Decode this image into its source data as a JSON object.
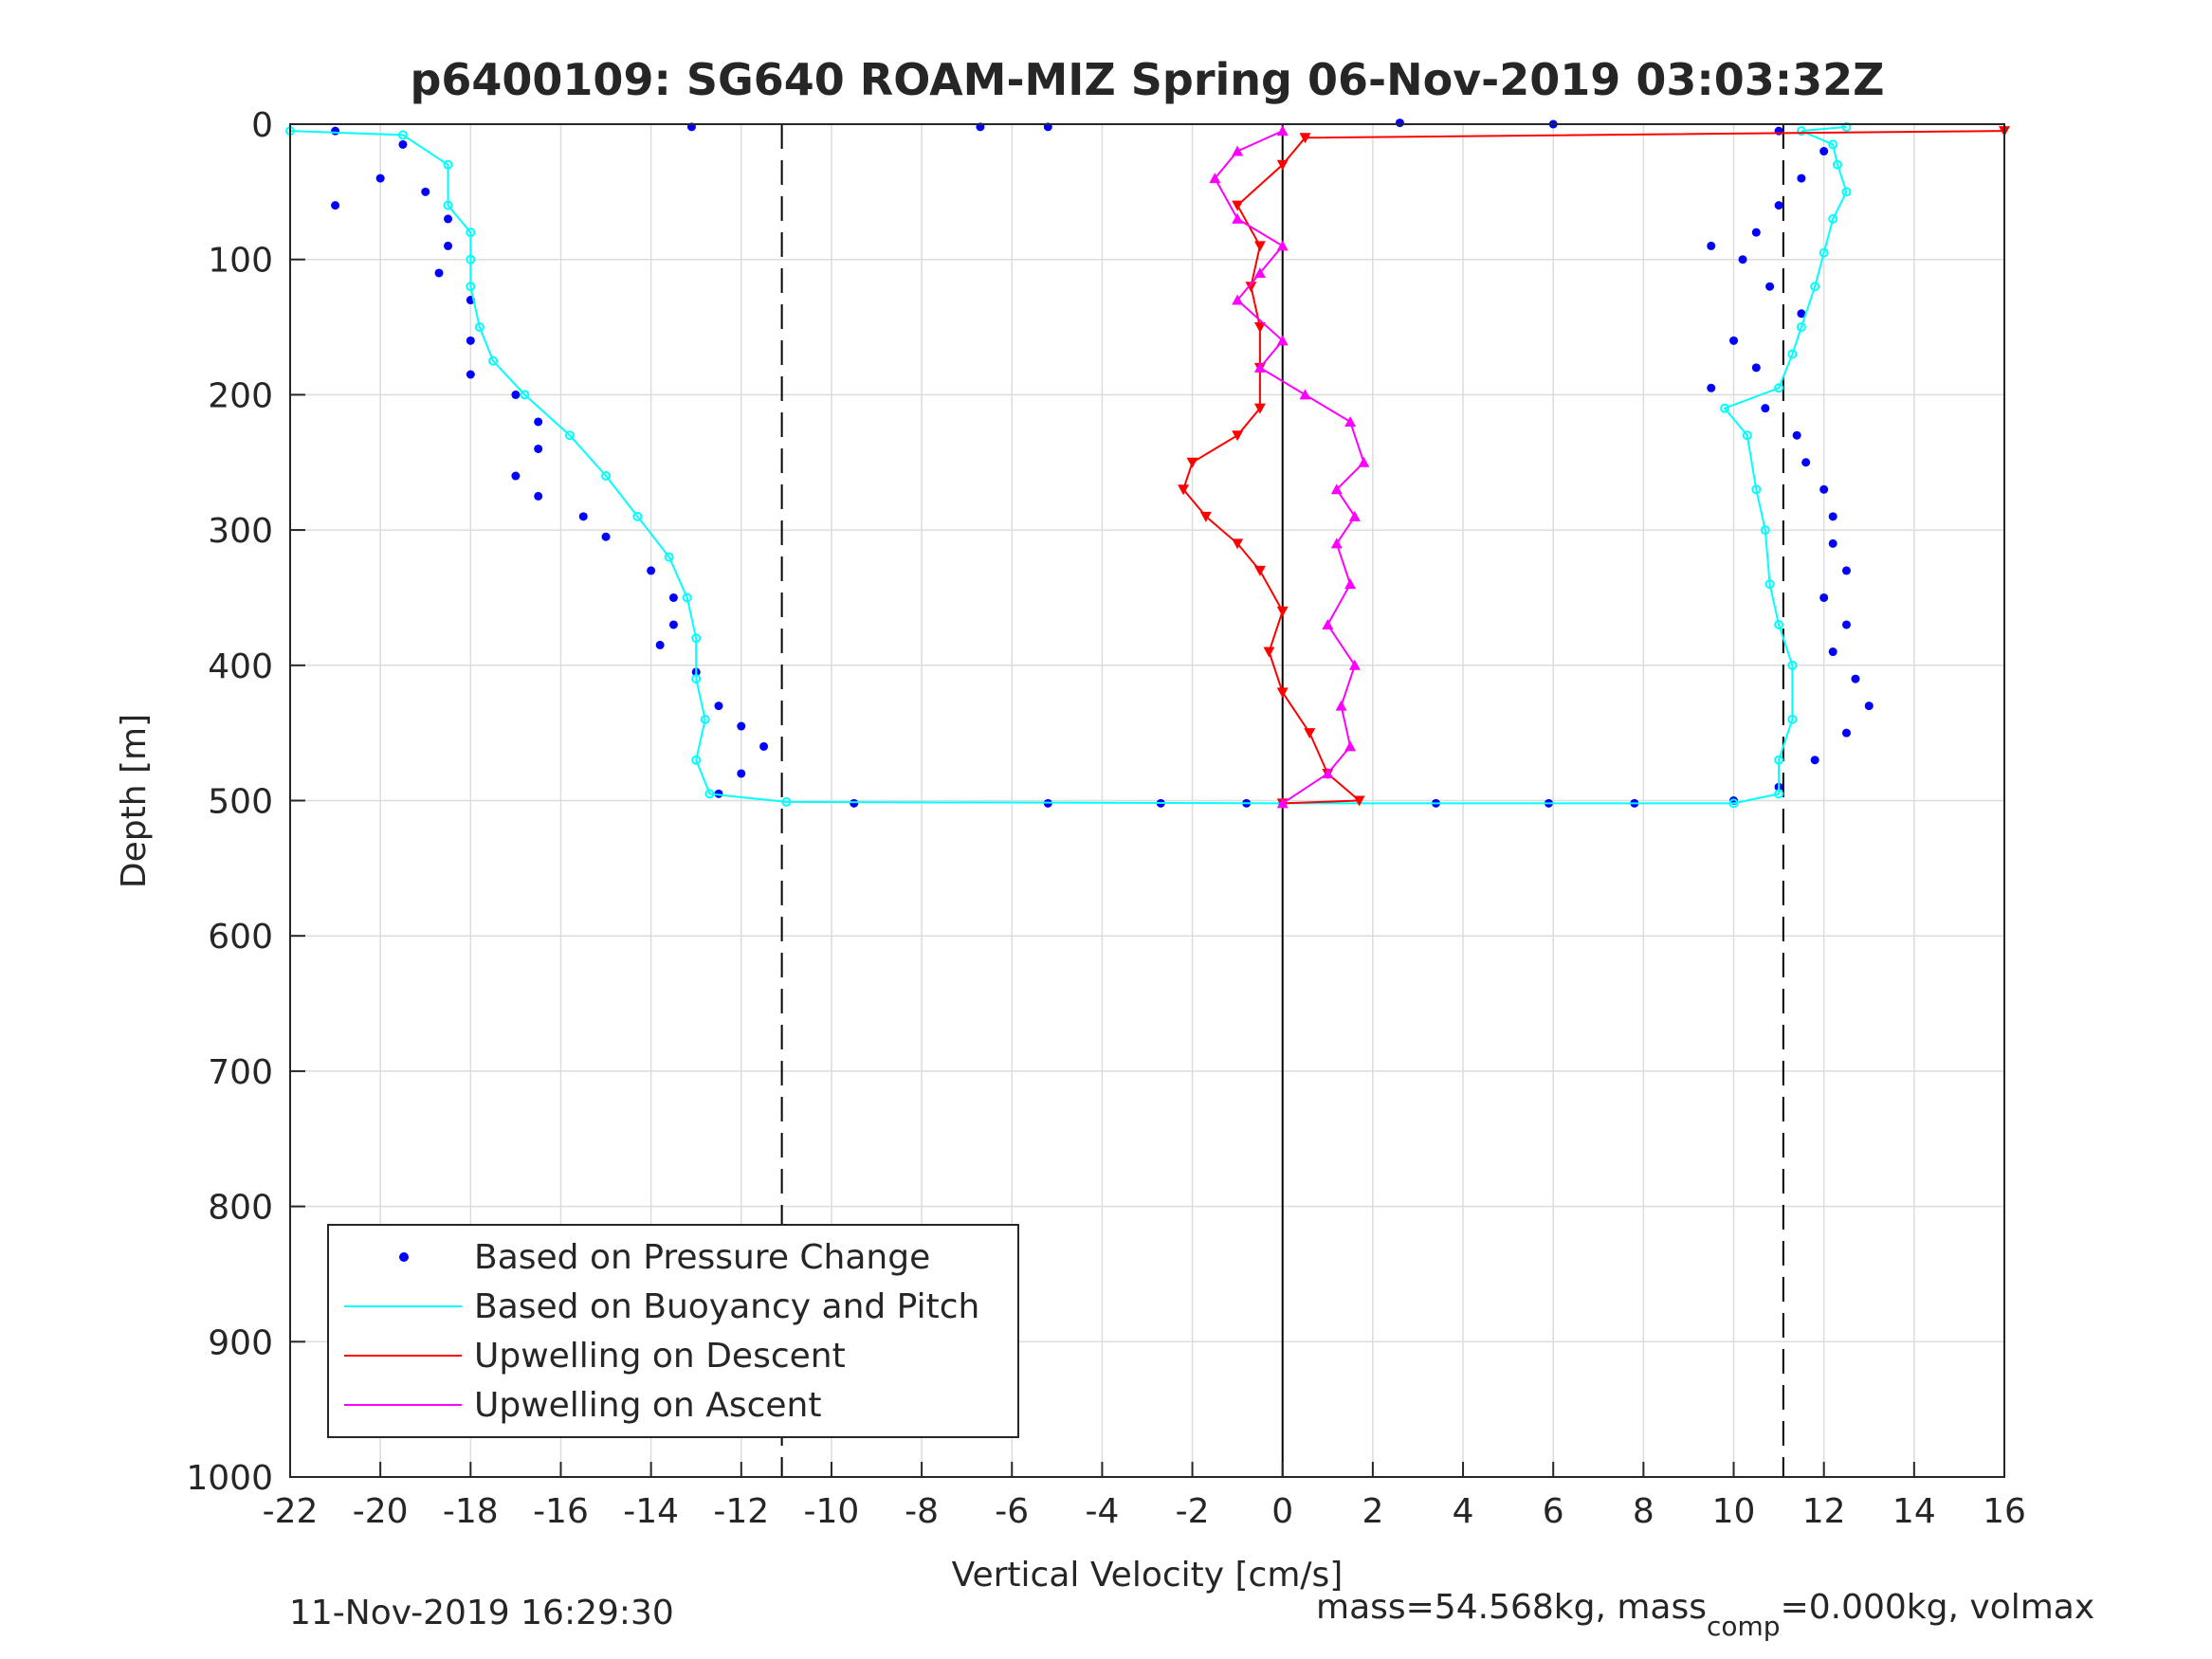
{
  "chart_data": {
    "type": "scatter",
    "title": "p6400109: SG640 ROAM-MIZ Spring 06-Nov-2019 03:03:32Z",
    "xlabel": "Vertical Velocity [cm/s]",
    "ylabel": "Depth [m]",
    "xlim": [
      -22,
      16
    ],
    "ylim": [
      0,
      1000
    ],
    "y_reversed": true,
    "xticks": [
      -22,
      -20,
      -18,
      -16,
      -14,
      -12,
      -10,
      -8,
      -6,
      -4,
      -2,
      0,
      2,
      4,
      6,
      8,
      10,
      12,
      14,
      16
    ],
    "yticks": [
      0,
      100,
      200,
      300,
      400,
      500,
      600,
      700,
      800,
      900,
      1000
    ],
    "grid": true,
    "legend_position": "bottom-left",
    "reference_lines": [
      {
        "x": -11.1,
        "style": "dashed",
        "color": "#000000"
      },
      {
        "x": 0,
        "style": "solid",
        "color": "#000000"
      },
      {
        "x": 11.1,
        "style": "dashed",
        "color": "#000000"
      }
    ],
    "series": [
      {
        "name": "Based on Pressure Change",
        "color": "#0000ff",
        "style": "dots",
        "points": [
          [
            -21,
            5
          ],
          [
            -19.5,
            15
          ],
          [
            -20,
            40
          ],
          [
            -21,
            60
          ],
          [
            -19,
            50
          ],
          [
            -18.5,
            70
          ],
          [
            -18.5,
            90
          ],
          [
            -18.7,
            110
          ],
          [
            -18,
            130
          ],
          [
            -18,
            160
          ],
          [
            -18,
            185
          ],
          [
            -17,
            200
          ],
          [
            -16.5,
            220
          ],
          [
            -16.5,
            240
          ],
          [
            -17,
            260
          ],
          [
            -16.5,
            275
          ],
          [
            -15.5,
            290
          ],
          [
            -15,
            305
          ],
          [
            -14,
            330
          ],
          [
            -13.5,
            350
          ],
          [
            -13.5,
            370
          ],
          [
            -13.8,
            385
          ],
          [
            -13,
            405
          ],
          [
            -12.5,
            430
          ],
          [
            -12,
            445
          ],
          [
            -11.5,
            460
          ],
          [
            -12,
            480
          ],
          [
            -12.5,
            495
          ],
          [
            -9.5,
            502
          ],
          [
            -5.2,
            502
          ],
          [
            -2.7,
            502
          ],
          [
            -0.8,
            502
          ],
          [
            3.4,
            502
          ],
          [
            5.9,
            502
          ],
          [
            7.8,
            502
          ],
          [
            10,
            500
          ],
          [
            11,
            490
          ],
          [
            11.8,
            470
          ],
          [
            12.5,
            450
          ],
          [
            13,
            430
          ],
          [
            12.7,
            410
          ],
          [
            12.2,
            390
          ],
          [
            12.5,
            370
          ],
          [
            12,
            350
          ],
          [
            12.5,
            330
          ],
          [
            12.2,
            310
          ],
          [
            12.2,
            290
          ],
          [
            12,
            270
          ],
          [
            11.6,
            250
          ],
          [
            11.4,
            230
          ],
          [
            10.7,
            210
          ],
          [
            9.5,
            195
          ],
          [
            10.5,
            180
          ],
          [
            10,
            160
          ],
          [
            11.5,
            140
          ],
          [
            10.8,
            120
          ],
          [
            10.2,
            100
          ],
          [
            9.5,
            90
          ],
          [
            10.5,
            80
          ],
          [
            11,
            60
          ],
          [
            11.5,
            40
          ],
          [
            12,
            20
          ],
          [
            11,
            5
          ],
          [
            -6.7,
            2
          ],
          [
            -5.2,
            2
          ],
          [
            -13.1,
            2
          ],
          [
            6,
            0
          ],
          [
            2.6,
            -1
          ]
        ]
      },
      {
        "name": "Based on Buoyancy and Pitch",
        "color": "#00ffff",
        "style": "line-markers",
        "points": [
          [
            -22,
            5
          ],
          [
            -19.5,
            8
          ],
          [
            -18.5,
            30
          ],
          [
            -18.5,
            60
          ],
          [
            -18,
            80
          ],
          [
            -18,
            100
          ],
          [
            -18,
            120
          ],
          [
            -17.8,
            150
          ],
          [
            -17.5,
            175
          ],
          [
            -16.8,
            200
          ],
          [
            -15.8,
            230
          ],
          [
            -15,
            260
          ],
          [
            -14.3,
            290
          ],
          [
            -13.6,
            320
          ],
          [
            -13.2,
            350
          ],
          [
            -13,
            380
          ],
          [
            -13,
            410
          ],
          [
            -12.8,
            440
          ],
          [
            -13,
            470
          ],
          [
            -12.7,
            495
          ],
          [
            -11,
            501
          ],
          [
            0,
            502
          ],
          [
            10,
            502
          ],
          [
            11,
            495
          ],
          [
            11,
            470
          ],
          [
            11.3,
            440
          ],
          [
            11.3,
            400
          ],
          [
            11,
            370
          ],
          [
            10.8,
            340
          ],
          [
            10.7,
            300
          ],
          [
            10.5,
            270
          ],
          [
            10.3,
            230
          ],
          [
            9.8,
            210
          ],
          [
            11,
            195
          ],
          [
            11.3,
            170
          ],
          [
            11.5,
            150
          ],
          [
            11.8,
            120
          ],
          [
            12,
            95
          ],
          [
            12.2,
            70
          ],
          [
            12.5,
            50
          ],
          [
            12.3,
            30
          ],
          [
            12.2,
            15
          ],
          [
            11.5,
            5
          ],
          [
            12.5,
            2
          ]
        ]
      },
      {
        "name": "Upwelling on Descent",
        "color": "#ff0000",
        "style": "line-markers",
        "points": [
          [
            16,
            5
          ],
          [
            0.5,
            10
          ],
          [
            0,
            30
          ],
          [
            -1,
            60
          ],
          [
            -0.5,
            90
          ],
          [
            -0.7,
            120
          ],
          [
            -0.5,
            150
          ],
          [
            -0.5,
            180
          ],
          [
            -0.5,
            210
          ],
          [
            -1,
            230
          ],
          [
            -2,
            250
          ],
          [
            -2.2,
            270
          ],
          [
            -1.7,
            290
          ],
          [
            -1,
            310
          ],
          [
            -0.5,
            330
          ],
          [
            0,
            360
          ],
          [
            -0.3,
            390
          ],
          [
            0,
            420
          ],
          [
            0.6,
            450
          ],
          [
            1,
            480
          ],
          [
            1.7,
            500
          ],
          [
            0,
            502
          ]
        ]
      },
      {
        "name": "Upwelling on Ascent",
        "color": "#ff00ff",
        "style": "line-markers",
        "points": [
          [
            0,
            502
          ],
          [
            1,
            480
          ],
          [
            1.5,
            460
          ],
          [
            1.3,
            430
          ],
          [
            1.6,
            400
          ],
          [
            1,
            370
          ],
          [
            1.5,
            340
          ],
          [
            1.2,
            310
          ],
          [
            1.6,
            290
          ],
          [
            1.2,
            270
          ],
          [
            1.8,
            250
          ],
          [
            1.5,
            220
          ],
          [
            0.5,
            200
          ],
          [
            -0.5,
            180
          ],
          [
            0,
            160
          ],
          [
            -1,
            130
          ],
          [
            -0.5,
            110
          ],
          [
            0,
            90
          ],
          [
            -1,
            70
          ],
          [
            -1.5,
            40
          ],
          [
            -1,
            20
          ],
          [
            0,
            5
          ]
        ]
      }
    ],
    "annotations": {
      "timestamp": "11-Nov-2019 16:29:30",
      "mass_prefix": "mass=54.568kg, mass",
      "mass_subscript": "comp",
      "mass_suffix": "=0.000kg, volmax"
    }
  }
}
